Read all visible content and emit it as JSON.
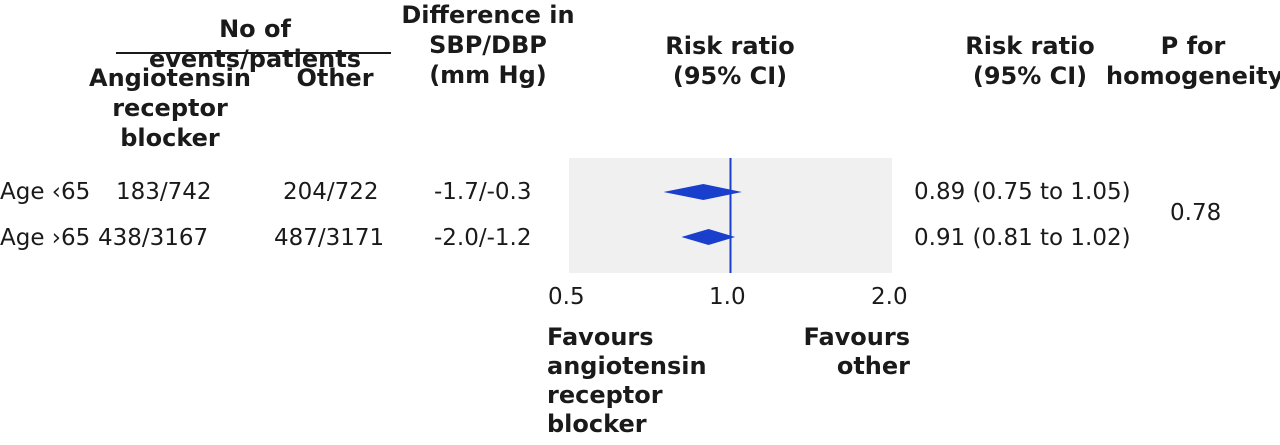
{
  "headers": {
    "events_group": "No of events/patients",
    "arb": "Angiotensin\nreceptor\nblocker",
    "other": "Other",
    "difference": "Difference in\nSBP/DBP\n(mm Hg)",
    "plot_rr": "Risk ratio\n(95% CI)",
    "rr_text": "Risk ratio\n(95% CI)",
    "p_homog": "P for\nhomogeneity"
  },
  "rows": [
    {
      "label": "Age ‹65",
      "arb": "183/742",
      "other": "204/722",
      "diff": "-1.7/-0.3",
      "rr_text": "0.89 (0.75 to 1.05)"
    },
    {
      "label": "Age ›65",
      "arb": "438/3167",
      "other": "487/3171",
      "diff": "-2.0/-1.2",
      "rr_text": "0.91 (0.81 to 1.02)"
    }
  ],
  "p_value": "0.78",
  "favours": {
    "left": "Favours\nangiotensin\nreceptor\nblocker",
    "right": "Favours\nother"
  },
  "colors": {
    "marker": "#1a3fcc",
    "plot_bg": "#f0f0f0",
    "text": "#1a1a1a"
  },
  "chart_data": {
    "type": "forest",
    "categories": [
      "Age ‹65",
      "Age ›65"
    ],
    "series": [
      {
        "estimate": [
          0.89,
          0.91
        ],
        "lower": [
          0.75,
          0.81
        ],
        "upper": [
          1.05,
          1.02
        ]
      }
    ],
    "x_scale": "log",
    "xlim": [
      0.5,
      2.0
    ],
    "reference_line": 1.0,
    "x_ticks": [
      0.5,
      1.0,
      2.0
    ],
    "x_tick_labels": [
      "0.5",
      "1.0",
      "2.0"
    ]
  }
}
